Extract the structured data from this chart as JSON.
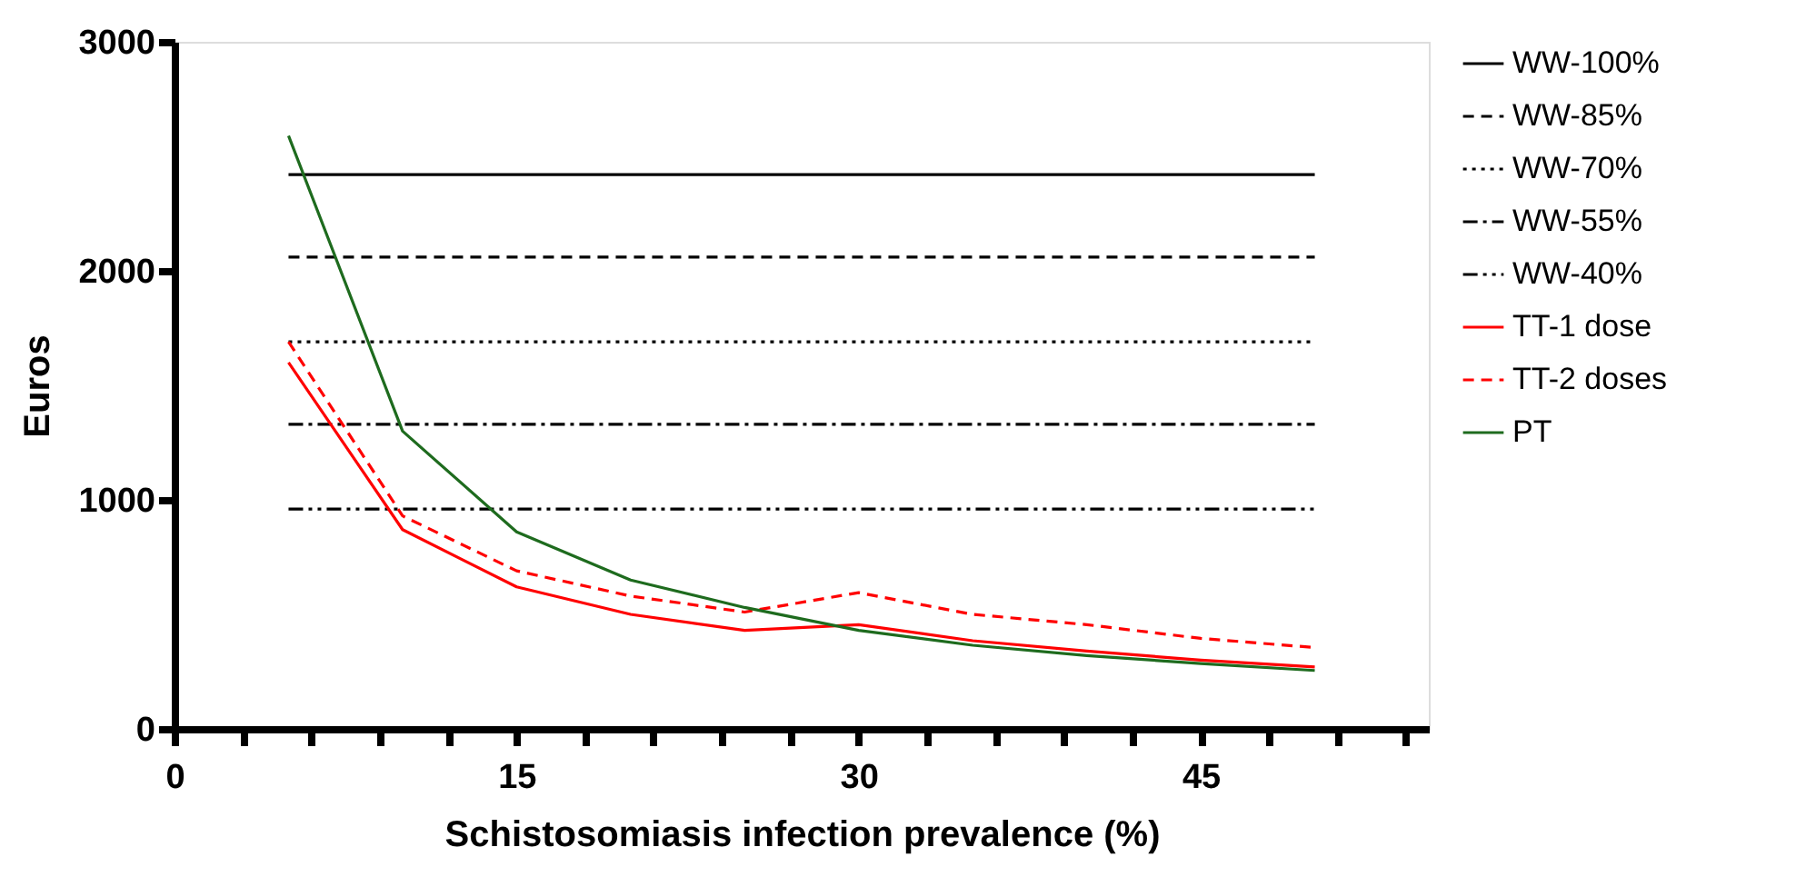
{
  "chart_data": {
    "type": "line",
    "xlabel": "Schistosomiasis infection prevalence (%)",
    "ylabel": "Euros",
    "xlim": [
      0,
      55
    ],
    "ylim": [
      0,
      3000
    ],
    "xticks": [
      0,
      {
        "value": 3,
        "label": null
      },
      {
        "value": 6,
        "label": null
      },
      {
        "value": 9,
        "label": null
      },
      {
        "value": 12,
        "label": null
      },
      15,
      {
        "value": 18,
        "label": null
      },
      {
        "value": 21,
        "label": null
      },
      {
        "value": 24,
        "label": null
      },
      {
        "value": 27,
        "label": null
      },
      30,
      {
        "value": 33,
        "label": null
      },
      {
        "value": 36,
        "label": null
      },
      {
        "value": 39,
        "label": null
      },
      {
        "value": 42,
        "label": null
      },
      45,
      {
        "value": 48,
        "label": null
      },
      {
        "value": 51,
        "label": null
      },
      {
        "value": 54,
        "label": null
      }
    ],
    "yticks": [
      0,
      1000,
      2000,
      3000
    ],
    "grid": false,
    "legend": "right",
    "marker": "none",
    "series": [
      {
        "name": "WW-100%",
        "color": "#000000",
        "line_style": "solid",
        "x": [
          5,
          50
        ],
        "values": [
          2420,
          2420
        ]
      },
      {
        "name": "WW-85%",
        "color": "#000000",
        "line_style": "dashed",
        "x": [
          5,
          50
        ],
        "values": [
          2060,
          2060
        ]
      },
      {
        "name": "WW-70%",
        "color": "#000000",
        "line_style": "dotted",
        "x": [
          5,
          50
        ],
        "values": [
          1690,
          1690
        ]
      },
      {
        "name": "WW-55%",
        "color": "#000000",
        "line_style": "dashdot",
        "x": [
          5,
          50
        ],
        "values": [
          1330,
          1330
        ]
      },
      {
        "name": "WW-40%",
        "color": "#000000",
        "line_style": "dashdotdot",
        "x": [
          5,
          50
        ],
        "values": [
          960,
          960
        ]
      },
      {
        "name": "TT-1 dose",
        "color": "#ff0000",
        "line_style": "solid",
        "x": [
          5,
          10,
          15,
          20,
          25,
          30,
          35,
          40,
          45,
          50
        ],
        "values": [
          1600,
          870,
          620,
          500,
          430,
          455,
          385,
          340,
          300,
          270
        ]
      },
      {
        "name": "TT-2 doses",
        "color": "#ff0000",
        "line_style": "dashed",
        "x": [
          5,
          10,
          15,
          20,
          25,
          30,
          35,
          40,
          45,
          50
        ],
        "values": [
          1690,
          930,
          690,
          580,
          510,
          595,
          500,
          455,
          395,
          355
        ]
      },
      {
        "name": "PT",
        "color": "#1e6b1e",
        "line_style": "solid",
        "x": [
          5,
          10,
          15,
          20,
          25,
          30,
          35,
          40,
          45,
          50
        ],
        "values": [
          2590,
          1300,
          860,
          650,
          530,
          430,
          365,
          320,
          285,
          255
        ]
      }
    ]
  }
}
